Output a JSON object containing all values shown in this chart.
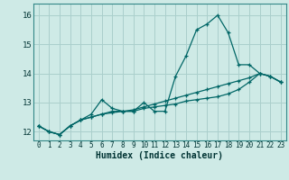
{
  "xlabel": "Humidex (Indice chaleur)",
  "bg_color": "#ceeae6",
  "grid_color": "#aacfcc",
  "line_color": "#006666",
  "x": [
    0,
    1,
    2,
    3,
    4,
    5,
    6,
    7,
    8,
    9,
    10,
    11,
    12,
    13,
    14,
    15,
    16,
    17,
    18,
    19,
    20,
    21,
    22,
    23
  ],
  "line1": [
    12.2,
    12.0,
    11.9,
    12.2,
    12.4,
    12.6,
    13.1,
    12.8,
    12.7,
    12.7,
    13.0,
    12.7,
    12.7,
    13.9,
    14.6,
    15.5,
    15.7,
    16.0,
    15.4,
    14.3,
    14.3,
    14.0,
    13.9,
    13.7
  ],
  "line2": [
    12.2,
    12.0,
    11.9,
    12.2,
    12.4,
    12.5,
    12.6,
    12.65,
    12.7,
    12.75,
    12.85,
    12.95,
    13.05,
    13.15,
    13.25,
    13.35,
    13.45,
    13.55,
    13.65,
    13.75,
    13.85,
    14.0,
    13.9,
    13.7
  ],
  "line3": [
    12.2,
    12.0,
    11.9,
    12.2,
    12.4,
    12.5,
    12.6,
    12.7,
    12.7,
    12.7,
    12.8,
    12.85,
    12.9,
    12.95,
    13.05,
    13.1,
    13.15,
    13.2,
    13.3,
    13.45,
    13.7,
    14.0,
    13.9,
    13.7
  ],
  "ylim_min": 11.7,
  "ylim_max": 16.4,
  "yticks": [
    12,
    13,
    14,
    15,
    16
  ],
  "xtick_fontsize": 5.5,
  "ytick_fontsize": 6.5,
  "xlabel_fontsize": 7
}
